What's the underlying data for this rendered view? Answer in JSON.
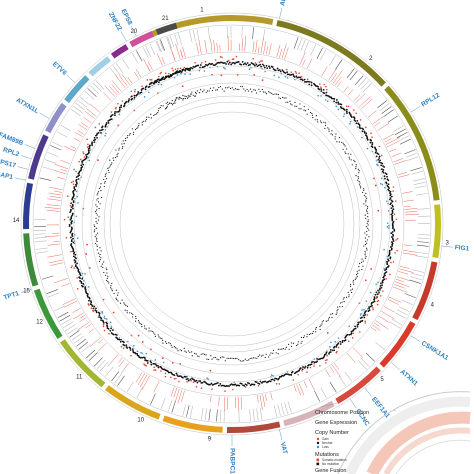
{
  "chromosomes": [
    {
      "id": "1",
      "color": "#b59a2a"
    },
    {
      "id": "2",
      "color": "#7c7a1e"
    },
    {
      "id": "3",
      "color": "#8b8d1a"
    },
    {
      "id": "4",
      "color": "#bfbf22"
    },
    {
      "id": "5",
      "color": "#c63a2b"
    },
    {
      "id": "6",
      "color": "#d83a2b"
    },
    {
      "id": "7",
      "color": "#d8483c"
    },
    {
      "id": "8",
      "color": "#d6b3b7"
    },
    {
      "id": "9",
      "color": "#b2483a"
    },
    {
      "id": "10",
      "color": "#e79f1d"
    },
    {
      "id": "11",
      "color": "#d9a51a"
    },
    {
      "id": "12",
      "color": "#a4b533"
    },
    {
      "id": "13",
      "color": "#3a9a3a"
    },
    {
      "id": "14",
      "color": "#3f8a3a"
    },
    {
      "id": "15",
      "color": "#2c3d8f"
    },
    {
      "id": "16",
      "color": "#4e3a8c"
    },
    {
      "id": "17",
      "color": "#8f8fc9"
    },
    {
      "id": "18",
      "color": "#5ea8c8"
    },
    {
      "id": "19",
      "color": "#9fd0e8"
    },
    {
      "id": "20",
      "color": "#8a2a8a"
    },
    {
      "id": "21",
      "color": "#d24fa0"
    },
    {
      "id": "22",
      "color": "#4a4a4a"
    }
  ],
  "visible_chromosome_labels": [
    {
      "text": "1",
      "angle": -8
    },
    {
      "text": "2",
      "angle": 40
    },
    {
      "text": "3",
      "angle": 95
    },
    {
      "text": "4",
      "angle": 112
    },
    {
      "text": "5",
      "angle": 136
    },
    {
      "text": "9",
      "angle": 186
    },
    {
      "text": "10",
      "angle": 205
    },
    {
      "text": "11",
      "angle": 225
    },
    {
      "text": "12",
      "angle": 243
    },
    {
      "text": "14",
      "angle": 271
    },
    {
      "text": "15",
      "angle": 252
    },
    {
      "text": "20",
      "angle": 333
    },
    {
      "text": "21",
      "angle": 342
    }
  ],
  "gene_labels": [
    {
      "text": "ANKRD11",
      "angle": 13
    },
    {
      "text": "RPL12",
      "angle": 58
    },
    {
      "text": "FIG1",
      "angle": 96
    },
    {
      "text": "CSNK1A1",
      "angle": 122
    },
    {
      "text": "ATXN1",
      "angle": 131
    },
    {
      "text": "EEF1A1",
      "angle": 141
    },
    {
      "text": "CCNC",
      "angle": 146
    },
    {
      "text": "VAT",
      "angle": 167
    },
    {
      "text": "PABPC1",
      "angle": 180
    },
    {
      "text": "TPT1",
      "angle": 252
    },
    {
      "text": "IQGAP1",
      "angle": 282
    },
    {
      "text": "RPS17",
      "angle": 285
    },
    {
      "text": "RPL2",
      "angle": 288
    },
    {
      "text": "FAM89B",
      "angle": 291
    },
    {
      "text": "ATXN1L",
      "angle": 300
    },
    {
      "text": "ETV6",
      "angle": 312
    },
    {
      "text": "ZNF22",
      "angle": 330
    },
    {
      "text": "EPS8",
      "angle": 333
    }
  ],
  "legend": {
    "chromosome_position": "Chromosome Position",
    "gene_expression": "Gene Expression",
    "copy_number": "Copy Number",
    "copy_sub": [
      "Gain",
      "Neutral",
      "Loss"
    ],
    "mutations": "Mutations",
    "mutation_sub": [
      "Somatic mutation",
      "No mutation"
    ],
    "gene_fusion": "Gene Fusion"
  },
  "colors": {
    "accent_blue": "#2f7fc1",
    "expression_red": "#e0503a",
    "cn_gain_red": "#e8432a",
    "cn_loss_blue": "#3a8fd0",
    "cn_neutral": "#111111"
  }
}
